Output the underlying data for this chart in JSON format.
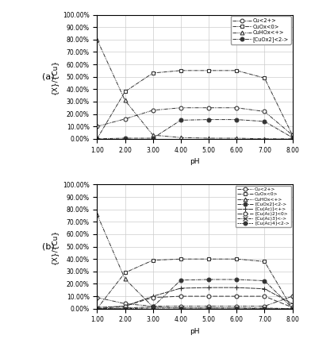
{
  "ph": [
    1.0,
    2.0,
    3.0,
    4.0,
    5.0,
    6.0,
    7.0,
    8.0
  ],
  "panel_a": {
    "Cu2+": [
      10.0,
      16.0,
      23.0,
      25.0,
      25.0,
      25.0,
      22.0,
      3.0
    ],
    "CuOx0": [
      0.0,
      38.0,
      53.0,
      55.0,
      55.0,
      55.0,
      49.0,
      3.0
    ],
    "CuHOxp": [
      80.0,
      31.0,
      3.0,
      1.0,
      0.5,
      0.5,
      0.0,
      0.0
    ],
    "CuOx2m": [
      0.0,
      0.5,
      0.5,
      15.0,
      15.5,
      15.5,
      14.0,
      1.0
    ]
  },
  "panel_b": {
    "Cu2+": [
      9.0,
      4.0,
      2.0,
      2.0,
      2.0,
      2.0,
      2.0,
      10.0
    ],
    "CuOx0": [
      0.0,
      29.0,
      39.0,
      40.0,
      40.0,
      40.0,
      38.0,
      0.0
    ],
    "CuHOxp": [
      76.0,
      24.0,
      1.5,
      0.5,
      0.5,
      0.5,
      0.0,
      0.0
    ],
    "CuOx2m": [
      0.0,
      0.5,
      1.5,
      23.0,
      23.5,
      23.5,
      22.5,
      0.5
    ],
    "CuAc1p": [
      1.0,
      2.0,
      10.0,
      16.5,
      17.0,
      17.0,
      16.0,
      4.0
    ],
    "CuAc20": [
      0.0,
      2.0,
      9.0,
      10.0,
      10.0,
      10.0,
      10.0,
      1.0
    ],
    "CuAc3m": [
      0.0,
      0.0,
      0.5,
      0.5,
      0.5,
      0.5,
      0.5,
      0.0
    ],
    "CuAc4m2": [
      0.0,
      0.0,
      0.0,
      0.0,
      0.0,
      0.0,
      0.0,
      0.0
    ]
  },
  "legend_a": [
    "Cu<2+>",
    "CuOx<0>",
    "CuHOx<+>",
    "[CuOx2]<2->"
  ],
  "legend_b": [
    "Cu<2+>",
    "CuOx<0>",
    "CuHOx<+>",
    "[CuOx2]<2->",
    "[Cu(Ac)]<+>",
    "[Cu(Ac)2]<0>",
    "[Cu(Ac)3]<->",
    "[Cu(Ac)4]<2->"
  ],
  "ylabel": "{X}/{Cu}",
  "xlabel": "pH",
  "dark": "#333333",
  "yticks": [
    0,
    10,
    20,
    30,
    40,
    50,
    60,
    70,
    80,
    90,
    100
  ],
  "ytick_labels": [
    "0.00%",
    "10.00%",
    "20.00%",
    "30.00%",
    "40.00%",
    "50.00%",
    "60.00%",
    "70.00%",
    "80.00%",
    "90.00%",
    "100.00%"
  ]
}
